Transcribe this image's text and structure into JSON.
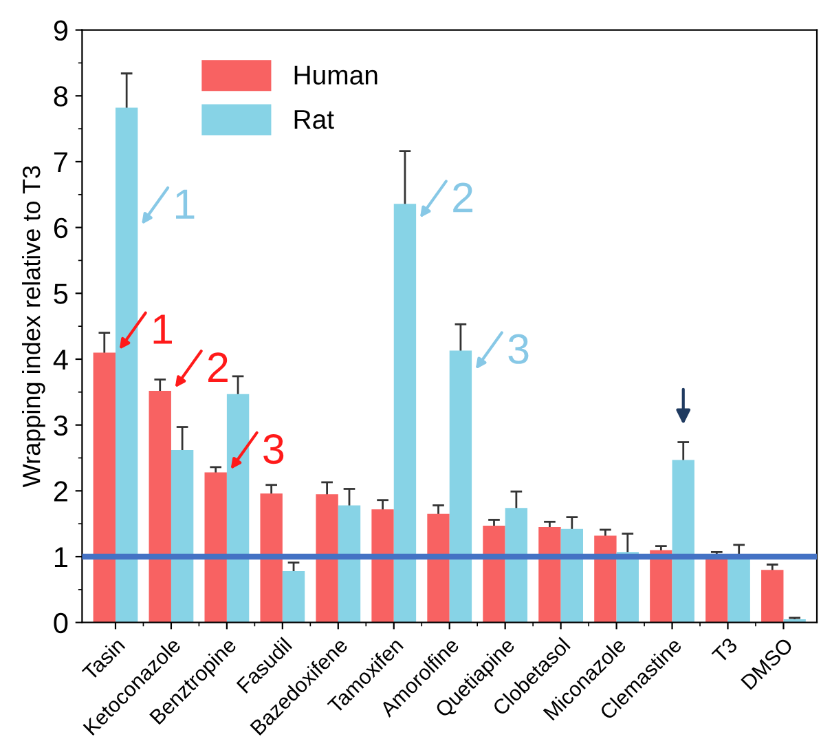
{
  "chart_data": {
    "type": "bar",
    "ylabel": "Wrapping index relative to T3",
    "categories": [
      "Tasin",
      "Ketoconazole",
      "Benztropine",
      "Fasudil",
      "Bazedoxifene",
      "Tamoxifen",
      "Amorolfine",
      "Quetiapine",
      "Clobetasol",
      "Miconazole",
      "Clemastine",
      "T3",
      "DMSO"
    ],
    "series": [
      {
        "name": "Human",
        "color": "#f86262",
        "values": [
          4.1,
          3.52,
          2.28,
          1.96,
          1.95,
          1.72,
          1.65,
          1.47,
          1.45,
          1.32,
          1.1,
          1.0,
          0.8
        ],
        "errors": [
          0.3,
          0.17,
          0.08,
          0.13,
          0.18,
          0.14,
          0.13,
          0.09,
          0.08,
          0.09,
          0.06,
          0.07,
          0.08
        ]
      },
      {
        "name": "Rat",
        "color": "#87d3e6",
        "values": [
          7.82,
          2.62,
          3.47,
          0.78,
          1.78,
          6.36,
          4.13,
          1.74,
          1.42,
          1.07,
          2.47,
          1.0,
          0.05
        ],
        "errors": [
          0.52,
          0.35,
          0.27,
          0.13,
          0.25,
          0.8,
          0.4,
          0.25,
          0.18,
          0.28,
          0.27,
          0.18,
          0.02
        ]
      }
    ],
    "ylim": [
      0,
      9
    ],
    "yticks": [
      0,
      1,
      2,
      3,
      4,
      5,
      6,
      7,
      8,
      9
    ],
    "ref_lines": [
      {
        "axis": "y",
        "value": 1,
        "color": "#4472c4",
        "line_style": "solid"
      }
    ],
    "annotations": [
      {
        "text": "1",
        "x": "Tasin",
        "y": 4.1
      },
      {
        "text": "2",
        "x": "Ketoconazole",
        "y": 3.52
      },
      {
        "text": "3",
        "x": "Benztropine",
        "y": 2.28
      },
      {
        "text": "1",
        "x": "Tasin",
        "y": 6.0
      },
      {
        "text": "2",
        "x": "Tamoxifen",
        "y": 6.1
      },
      {
        "text": "3",
        "x": "Amorolfine",
        "y": 3.8
      }
    ],
    "legend": "top left",
    "grid": false
  }
}
